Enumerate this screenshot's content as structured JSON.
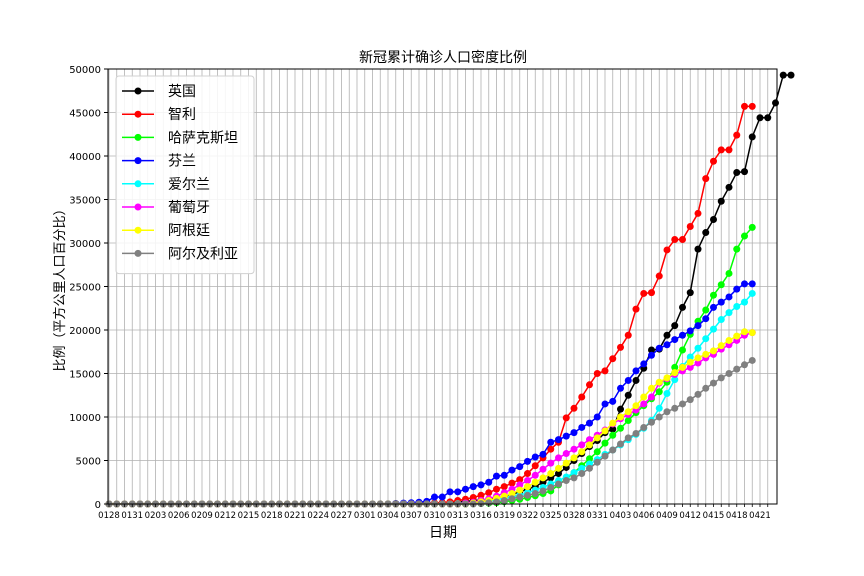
{
  "chart_data": {
    "type": "line",
    "title": "新冠累计确诊人口密度比例",
    "xlabel": "日期",
    "ylabel": "比例（平方公里人口百分比）",
    "ylim": [
      0,
      50000
    ],
    "yticks": [
      0,
      5000,
      10000,
      15000,
      20000,
      25000,
      30000,
      35000,
      40000,
      45000,
      50000
    ],
    "x_start": "2020-01-28",
    "x_end": "2020-04-22",
    "xticks": [
      "0128",
      "0131",
      "0203",
      "0206",
      "0209",
      "0212",
      "0215",
      "0218",
      "0221",
      "0224",
      "0227",
      "0301",
      "0304",
      "0307",
      "0310",
      "0313",
      "0316",
      "0319",
      "0322",
      "0325",
      "0328",
      "0331",
      "0403",
      "0406",
      "0409",
      "0412",
      "0415",
      "0418",
      "0421"
    ],
    "grid": true,
    "legend_position": "top-left",
    "series": [
      {
        "name": "英国",
        "color": "#000000",
        "values": [
          0,
          0,
          0,
          0,
          0,
          0,
          0,
          0,
          0,
          0,
          0,
          0,
          0,
          0,
          0,
          0,
          0,
          0,
          0,
          0,
          0,
          0,
          0,
          0,
          0,
          0,
          0,
          0,
          0,
          0,
          0,
          0,
          0,
          0,
          0,
          10,
          20,
          40,
          50,
          60,
          70,
          90,
          110,
          130,
          180,
          250,
          300,
          380,
          450,
          550,
          700,
          850,
          1100,
          1400,
          1700,
          2000,
          2500,
          3000,
          3500,
          4200,
          5000,
          5800,
          6600,
          7300,
          8200,
          8600,
          10900,
          12500,
          14200,
          15600,
          17700,
          17800,
          19400,
          20500,
          22600,
          24300,
          29300,
          31200,
          32700,
          34800,
          36400,
          38100,
          38200,
          42200,
          44400,
          44400,
          46100,
          49300,
          49300
        ]
      },
      {
        "name": "智利",
        "color": "#ff0000",
        "values": [
          0,
          0,
          0,
          0,
          0,
          0,
          0,
          0,
          0,
          0,
          0,
          0,
          0,
          0,
          0,
          0,
          0,
          0,
          0,
          0,
          0,
          0,
          0,
          0,
          0,
          0,
          0,
          0,
          0,
          0,
          0,
          0,
          0,
          0,
          0,
          0,
          0,
          0,
          0,
          0,
          0,
          50,
          100,
          150,
          250,
          400,
          550,
          750,
          1000,
          1300,
          1700,
          2000,
          2400,
          2800,
          3500,
          4400,
          5300,
          6300,
          7100,
          9900,
          11000,
          12300,
          13700,
          15000,
          15300,
          16700,
          18000,
          19400,
          22400,
          24200,
          24300,
          26200,
          29200,
          30400,
          30400,
          31900,
          33400,
          37400,
          39400,
          40700,
          40700,
          42400,
          45700,
          45700
        ]
      },
      {
        "name": "哈萨克斯坦",
        "color": "#00ff00",
        "values": [
          0,
          0,
          0,
          0,
          0,
          0,
          0,
          0,
          0,
          0,
          0,
          0,
          0,
          0,
          0,
          0,
          0,
          0,
          0,
          0,
          0,
          0,
          0,
          0,
          0,
          0,
          0,
          0,
          0,
          0,
          0,
          0,
          0,
          0,
          0,
          0,
          0,
          0,
          0,
          0,
          0,
          0,
          0,
          0,
          0,
          0,
          0,
          30,
          60,
          100,
          150,
          250,
          400,
          550,
          750,
          950,
          1200,
          1500,
          2200,
          2900,
          3600,
          4400,
          5200,
          6000,
          7000,
          7900,
          8700,
          9600,
          10500,
          11300,
          12100,
          12900,
          14000,
          15700,
          17700,
          19500,
          21000,
          22300,
          24000,
          25200,
          26500,
          29300,
          30800,
          31800
        ]
      },
      {
        "name": "芬兰",
        "color": "#0000ff",
        "values": [
          0,
          0,
          0,
          0,
          0,
          0,
          0,
          0,
          0,
          0,
          0,
          0,
          0,
          0,
          0,
          0,
          0,
          0,
          0,
          0,
          0,
          0,
          0,
          0,
          0,
          0,
          0,
          0,
          0,
          0,
          0,
          0,
          0,
          0,
          0,
          0,
          0,
          50,
          100,
          150,
          200,
          300,
          800,
          800,
          1400,
          1400,
          1700,
          2000,
          2200,
          2500,
          3200,
          3300,
          3900,
          4300,
          4900,
          5400,
          5700,
          7100,
          7400,
          7800,
          8200,
          8800,
          9300,
          10000,
          11500,
          11800,
          13300,
          14200,
          15300,
          16100,
          17100,
          17900,
          18300,
          18900,
          19400,
          19900,
          20500,
          21300,
          22600,
          23200,
          23800,
          24700,
          25300,
          25300
        ]
      },
      {
        "name": "爱尔兰",
        "color": "#00ffff",
        "values": [
          0,
          0,
          0,
          0,
          0,
          0,
          0,
          0,
          0,
          0,
          0,
          0,
          0,
          0,
          0,
          0,
          0,
          0,
          0,
          0,
          0,
          0,
          0,
          0,
          0,
          0,
          0,
          0,
          0,
          0,
          0,
          0,
          0,
          0,
          0,
          0,
          0,
          0,
          0,
          0,
          0,
          0,
          0,
          0,
          0,
          50,
          100,
          150,
          250,
          350,
          500,
          650,
          800,
          1000,
          1300,
          1600,
          1900,
          2300,
          2700,
          3100,
          3600,
          4100,
          4600,
          5100,
          5700,
          6200,
          6800,
          7400,
          8000,
          8700,
          9600,
          11000,
          12700,
          14300,
          15800,
          16900,
          17900,
          19000,
          20100,
          21200,
          22000,
          22700,
          23200,
          24200
        ]
      },
      {
        "name": "葡萄牙",
        "color": "#ff00ff",
        "values": [
          0,
          0,
          0,
          0,
          0,
          0,
          0,
          0,
          0,
          0,
          0,
          0,
          0,
          0,
          0,
          0,
          0,
          0,
          0,
          0,
          0,
          0,
          0,
          0,
          0,
          0,
          0,
          0,
          0,
          0,
          0,
          0,
          0,
          0,
          0,
          0,
          0,
          0,
          0,
          0,
          0,
          0,
          0,
          0,
          0,
          0,
          100,
          200,
          400,
          600,
          900,
          1300,
          1700,
          2200,
          2700,
          3300,
          4000,
          4700,
          5300,
          5800,
          6300,
          6800,
          7400,
          7900,
          8500,
          9200,
          9800,
          10300,
          10800,
          11500,
          12300,
          13900,
          14400,
          14900,
          15300,
          15700,
          16200,
          16800,
          17200,
          17800,
          18300,
          18800,
          19400,
          19700
        ]
      },
      {
        "name": "阿根廷",
        "color": "#ffff00",
        "values": [
          0,
          0,
          0,
          0,
          0,
          0,
          0,
          0,
          0,
          0,
          0,
          0,
          0,
          0,
          0,
          0,
          0,
          0,
          0,
          0,
          0,
          0,
          0,
          0,
          0,
          0,
          0,
          0,
          0,
          0,
          0,
          0,
          0,
          0,
          0,
          0,
          0,
          0,
          0,
          0,
          0,
          0,
          0,
          0,
          0,
          0,
          0,
          100,
          250,
          400,
          650,
          900,
          1200,
          1600,
          2000,
          2500,
          3000,
          3500,
          4100,
          4700,
          5300,
          6000,
          6800,
          7600,
          8400,
          9300,
          10000,
          10600,
          11300,
          12300,
          13300,
          14000,
          14500,
          15100,
          15700,
          16300,
          16800,
          17200,
          17600,
          18200,
          18800,
          19300,
          19800,
          19700
        ]
      },
      {
        "name": "阿尔及利亚",
        "color": "#808080",
        "values": [
          0,
          0,
          0,
          0,
          0,
          0,
          0,
          0,
          0,
          0,
          0,
          0,
          0,
          0,
          0,
          0,
          0,
          0,
          0,
          0,
          0,
          0,
          0,
          0,
          0,
          0,
          0,
          0,
          0,
          0,
          0,
          0,
          0,
          0,
          0,
          0,
          0,
          0,
          0,
          0,
          0,
          0,
          0,
          0,
          0,
          0,
          0,
          0,
          50,
          150,
          250,
          400,
          600,
          800,
          1000,
          1200,
          1500,
          1900,
          2300,
          2700,
          3000,
          3500,
          4100,
          4800,
          5500,
          6200,
          6900,
          7600,
          8100,
          8800,
          9400,
          10000,
          10600,
          11000,
          11500,
          12000,
          12600,
          13300,
          13900,
          14500,
          15000,
          15500,
          16000,
          16500
        ]
      }
    ]
  }
}
